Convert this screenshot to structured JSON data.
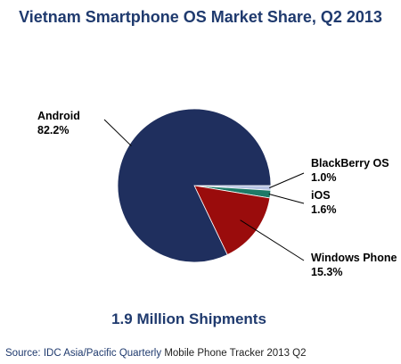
{
  "chart_data": {
    "type": "pie",
    "title": "Vietnam Smartphone OS Market Share, Q2 2013",
    "subtitle": "1.9 Million Shipments",
    "source": {
      "prefix": "Source: IDC Asia/Pacific Quarterly",
      "suffix": " Mobile Phone Tracker 2013 Q2"
    },
    "slices": [
      {
        "name": "Android",
        "value": 82.2,
        "label": "82.2%",
        "color": "#1f2f5e"
      },
      {
        "name": "BlackBerry OS",
        "value": 1.0,
        "label": "1.0%",
        "color": "#b7c3e3"
      },
      {
        "name": "iOS",
        "value": 1.6,
        "label": "1.6%",
        "color": "#1e7a67"
      },
      {
        "name": "Windows Phone",
        "value": 15.3,
        "label": "15.3%",
        "color": "#9a0c0c"
      }
    ],
    "colors": {
      "title": "#1f3a6e",
      "source_prefix": "#1f3a6e",
      "source_suffix": "#222222"
    }
  }
}
